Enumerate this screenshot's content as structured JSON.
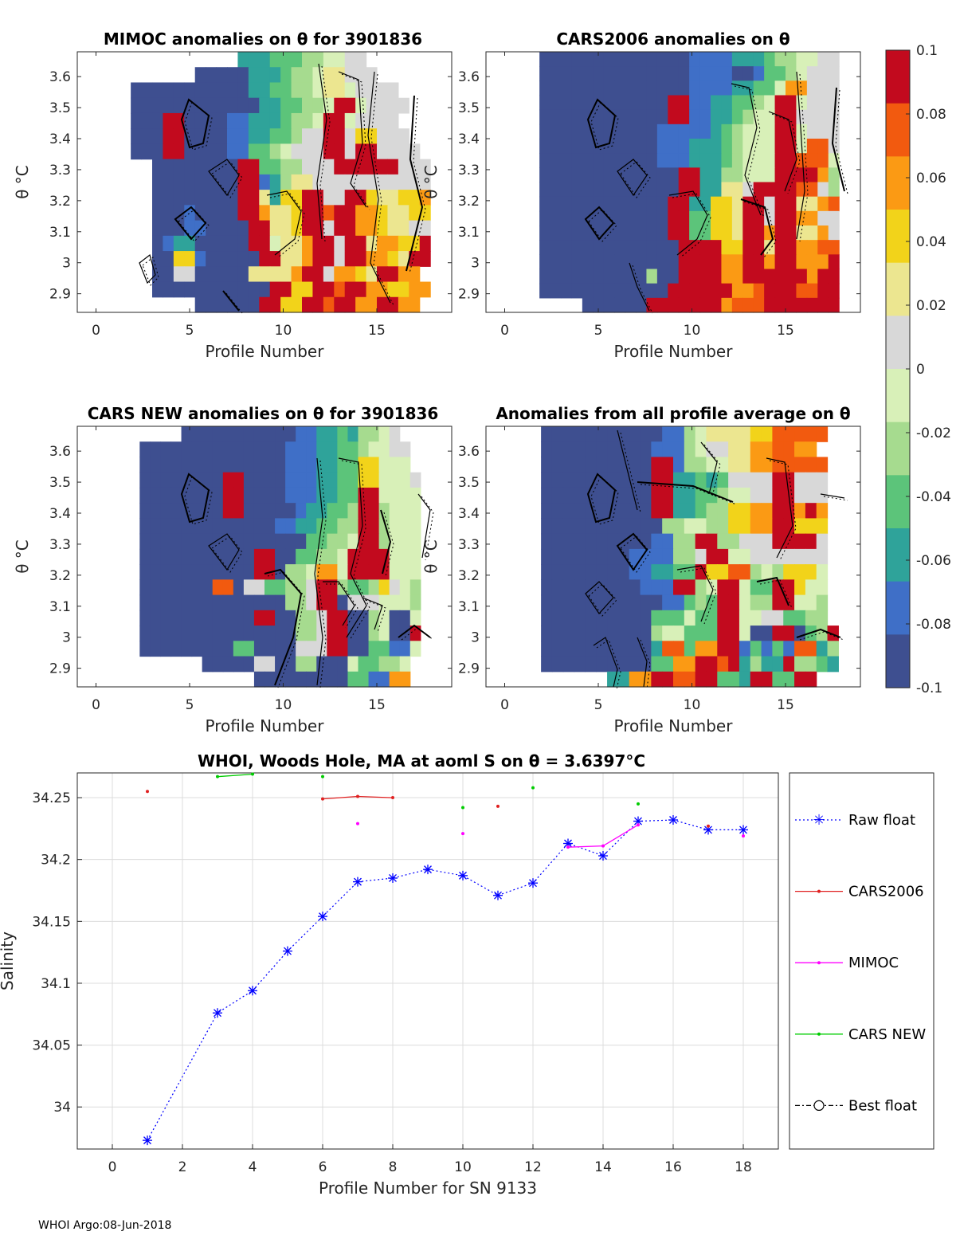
{
  "footer": "WHOI Argo:08-Jun-2018",
  "colorbar": {
    "min": -0.1,
    "max": 0.1,
    "tick_labels": [
      "0.1",
      "0.08",
      "0.06",
      "0.04",
      "0.02",
      "0",
      "-0.02",
      "-0.04",
      "-0.06",
      "-0.08",
      "-0.1"
    ],
    "colors": [
      "#3e4f90",
      "#3f6fc7",
      "#2fa39a",
      "#5cc47a",
      "#a6db8f",
      "#d8f0b8",
      "#d8d8d8",
      "#ece690",
      "#f2d31a",
      "#fb9a14",
      "#f25a0f",
      "#c20a1e"
    ]
  },
  "chart_data": [
    {
      "type": "heatmap",
      "title": "MIMOC anomalies on θ  for 3901836",
      "xlabel": "Profile Number",
      "ylabel": "θ °C",
      "xlim": [
        -1,
        19
      ],
      "ylim": [
        2.84,
        3.68
      ],
      "x_ticks": [
        "0",
        "5",
        "10",
        "15"
      ],
      "y_ticks": [
        "2.9",
        "3",
        "3.1",
        "3.2",
        "3.3",
        "3.4",
        "3.5",
        "3.6"
      ],
      "rows_top_to_bottom": [
        "               CCCDDDEEFFGG        ",
        "           AAAAACCCDEEFHHGGG       ",
        "     AAAAAAAAAAACCDDEEFHHFGGGG     ",
        "     AAAAAAAAAAAACCDDEEFLLFGGGG    ",
        "     AAALLAAAABBCCCDEEFLLFGGGG     ",
        "     AAALLAAAABBCCDDEGGLLGIIGGG    ",
        "     AAALLAAAABBDDEFGGGLLGLLGGGG   ",
        "       AAAAAAAALLDDEEGGGLLLLLLGGG  ",
        "       AAAAAAAALLBCEHHGGGGGGGGGGG  ",
        "       AAAAAAAALLHCIILLGGLLIHHIIJ  ",
        "       AAABAAAALLJHHILLKLLJJIHHII  ",
        "       AAABBAAAALLHHILLGLLJJIHHGG  ",
        "       ABCCAAAAALLFHHJLLGLLHJJIIL  ",
        "       AAIIBAAAAALLHHJLLGLLJJIHLL  ",
        "       AAGGAAAAAHHHHJLLGJJIHLLJJ   ",
        "       AAAAAAAAAAALLIILLKLLJJIIJJ  ",
        "           AAAAAALLIILLKLLJJLLJJ   "
      ]
    },
    {
      "type": "heatmap",
      "title": "CARS2006 anomalies on θ",
      "xlabel": "Profile Number",
      "ylabel": "θ °C",
      "xlim": [
        -1,
        19
      ],
      "ylim": [
        2.84,
        3.68
      ],
      "x_ticks": [
        "0",
        "5",
        "10",
        "15"
      ],
      "y_ticks": [
        "2.9",
        "3",
        "3.1",
        "3.2",
        "3.3",
        "3.4",
        "3.5",
        "3.6"
      ],
      "rows_top_to_bottom": [
        "     AAAAAAAAAAAAAABBBBCCCDEEFFGG  ",
        "     AAAAAAAAAAAAAABBBBAABDDEFGGG  ",
        "     AAAAAAAAAAAAAABBBBCCDDFJJGGG  ",
        "     AAAAAAAAAAAALLBBCCDDEFLLFGGG  ",
        "     AAAAAAAAAAAALLBBCCDEFFLLGGGG  ",
        "     AAAAAAAAAAABBBBBCDEFFFLLFGGG  ",
        "     AAAAAAAAAAABBBCCCDEFFFLLFKKG  ",
        "     AAAAAAAAAAABBBCCCDEFFFLLKKKF  ",
        "     AAAAAAAAAAAAALLCCEEFFFLLLLJE  ",
        "     AAAAAAAAAAAAALLCCHHGLLLLKKGE  ",
        "     AAAAAAAAAAAALLCCIIHLLGLLHHJK  ",
        "     AAAAAAAAAAAALLDDIIHLLGLLJJGG  ",
        "     AAAAAAAAAAAALLDDIIHLLJLLHHJG  ",
        "     AAAAAAAAAAAAALLLLIILLHLLJJKK  ",
        "     AAAAAAAAAAAAALLLLJJLLJLLJJJL  ",
        "     AAAAAAAAAAEAALLLLJJLLLLLLJLL  ",
        "     AAAAAAAAAAAALLLLLLJJKLLLKKLL  ",
        "         AAAAAALLLLLLLJKKKLLLLLLL  "
      ]
    },
    {
      "type": "heatmap",
      "title": "CARS NEW anomalies on θ for 3901836",
      "xlabel": "Profile Number",
      "ylabel": "θ °C",
      "xlim": [
        -1,
        19
      ],
      "ylim": [
        2.84,
        3.68
      ],
      "x_ticks": [
        "0",
        "5",
        "10",
        "15"
      ],
      "y_ticks": [
        "2.9",
        "3",
        "3.1",
        "3.2",
        "3.3",
        "3.4",
        "3.5",
        "3.6"
      ],
      "rows_top_to_bottom": [
        "          AAAAAAAAAAABBCCDCEEFG    ",
        "      AAAAAAAAAAAAAABBBCCDDEFFGG   ",
        "      AAAAAAAAAAAAAABBBCCDDIIFFF   ",
        "      AAAAAAAALLAAAABBBCCDDIIFFFG  ",
        "      AAAAAAAALLAAAABBBCCDDLLFFFF  ",
        "      AAAAAAAALLAAAAABCCDDELLEFFF  ",
        "      AAAAAAAAAAAAABBCCDDEELLEFFF  ",
        "      AAAAAAAAAAAAAAAADDEEFLLEFFF  ",
        "      AAAAAAAAAAALLAADDEEFLLLLFFF  ",
        "      AAAAAAAAAAALLAEEFJJFLLLLFFF  ",
        "      AAAAAAAKKAGGDDEEGLLEDDEIGFE  ",
        "      AAAAAAAAAAAAAAEEGLLAGGGFFFE  ",
        "      AAAAAAAAAAALLAAEEGLLAAEFAAF  ",
        "      AAAAAAAAAAAAAAAEEGLLAAEFAAL  ",
        "      AAAAAAAAADDAAAAGGGLLAADDBBF  ",
        "            AAAAAGGAAEEAAAFDDEEF    ",
        "                 AAAAAAAAADDBBJJ    "
      ]
    },
    {
      "type": "heatmap",
      "title": "Anomalies from all profile average on θ",
      "xlabel": "Profile Number",
      "ylabel": "θ °C",
      "xlim": [
        -1,
        19
      ],
      "ylim": [
        2.84,
        3.68
      ],
      "x_ticks": [
        "0",
        "5",
        "10",
        "15"
      ],
      "y_ticks": [
        "2.9",
        "3",
        "3.1",
        "3.2",
        "3.3",
        "3.4",
        "3.5",
        "3.6"
      ],
      "rows_top_to_bottom": [
        "     AAAAAAAAAAABBEFHHHHIIKKKKK  ",
        "     AAAAAAAAAABBBEFGGHHJJKKJJ   ",
        "     AAAAAAAAAALLBEEFFHHJJKKKKK  ",
        "     AAAAAAAAAALLCCDCDGGGGLLGGG  ",
        "     AAAAAAAAAALLCCDDEFFGGLLGGG  ",
        "     AAAAAAAAAALLCCDEEIIJJLLJLJ  ",
        "     AAAAAAAAAAAEEFFEEIIJJLLIII  ",
        "     AAAAAAAAAABBEELLEEGGGLLLLG  ",
        "     AAAAAAAABBBBEEGLLFFGGGGGGG  ",
        "     AAAAAAAABBCCDDLIIKKEFEIIIF  ",
        "     AAAAAAAAABBBLLEFLLFDDLLIFF  ",
        "     AAAAAAAAAAABBDEDLLFEELLFFE  ",
        "     AAAAAAAAAADDDFDDLLFFGGDDEE  ",
        "     AAAAAAAAAAEFFDDDLLFAALLADEL  ",
        "     AAAAAAAAAACKKDJJLLBDBDBKKCE  ",
        "     AAAAAAAAAADDJJLLKLCECCLEEDC  ",
        "           CCJJLLKKLLDDCLLDDLL   "
      ]
    },
    {
      "type": "line",
      "title": "WHOI, Woods Hole, MA at aoml S on θ = 3.6397°C",
      "xlabel": "Profile Number for SN 9133",
      "ylabel": "Salinity",
      "xlim": [
        -1,
        19
      ],
      "ylim": [
        33.966,
        34.27
      ],
      "x_ticks": [
        "0",
        "2",
        "4",
        "6",
        "8",
        "10",
        "12",
        "14",
        "16",
        "18"
      ],
      "y_ticks": [
        "34",
        "34.05",
        "34.1",
        "34.15",
        "34.2",
        "34.25"
      ],
      "series": [
        {
          "name": "Raw float",
          "color": "#0000ff",
          "x": [
            1,
            3,
            4,
            5,
            6,
            7,
            8,
            9,
            10,
            11,
            12,
            13,
            14,
            15,
            16,
            17,
            18
          ],
          "y": [
            33.973,
            34.076,
            34.094,
            34.126,
            34.154,
            34.182,
            34.185,
            34.192,
            34.187,
            34.171,
            34.181,
            34.213,
            34.203,
            34.231,
            34.232,
            34.224,
            34.224
          ]
        },
        {
          "name": "CARS2006",
          "color": "#e02020",
          "segments": [
            [
              [
                6,
                34.249
              ],
              [
                7,
                34.251
              ],
              [
                8,
                34.25
              ]
            ]
          ],
          "points": [
            [
              1,
              34.255
            ],
            [
              11,
              34.243
            ],
            [
              17,
              34.227
            ]
          ]
        },
        {
          "name": "MIMOC",
          "color": "#ff00ff",
          "segments": [
            [
              [
                13,
                34.21
              ],
              [
                14,
                34.211
              ],
              [
                15,
                34.228
              ]
            ]
          ],
          "points": [
            [
              7,
              34.229
            ],
            [
              10,
              34.221
            ],
            [
              18,
              34.219
            ]
          ]
        },
        {
          "name": "CARS NEW",
          "color": "#00cc00",
          "segments": [
            [
              [
                3,
                34.267
              ],
              [
                4,
                34.269
              ]
            ]
          ],
          "points": [
            [
              6,
              34.267
            ],
            [
              10,
              34.242
            ],
            [
              12,
              34.258
            ],
            [
              15,
              34.245
            ]
          ]
        },
        {
          "name": "Best float",
          "color": "#000000",
          "x": [],
          "y": []
        }
      ]
    }
  ]
}
